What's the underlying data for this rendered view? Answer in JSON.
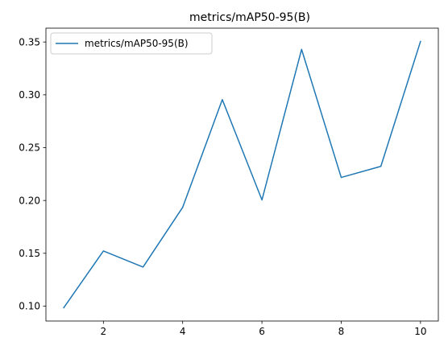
{
  "chart_data": {
    "type": "line",
    "title": "metrics/mAP50-95(B)",
    "xlabel": "",
    "ylabel": "",
    "x": [
      1,
      2,
      3,
      4,
      5,
      6,
      7,
      8,
      9,
      10
    ],
    "series": [
      {
        "name": "metrics/mAP50-95(B)",
        "values": [
          0.0985,
          0.1522,
          0.137,
          0.1935,
          0.2955,
          0.2005,
          0.343,
          0.2218,
          0.2323,
          0.3505
        ],
        "color": "#1f77b4"
      }
    ],
    "xlim": [
      0.55,
      10.45
    ],
    "ylim": [
      0.0859,
      0.3631
    ],
    "xticks": [
      2,
      4,
      6,
      8,
      10
    ],
    "xtick_labels": [
      "2",
      "4",
      "6",
      "8",
      "10"
    ],
    "yticks": [
      0.1,
      0.15,
      0.2,
      0.25,
      0.3,
      0.35
    ],
    "ytick_labels": [
      "0.10",
      "0.15",
      "0.20",
      "0.25",
      "0.30",
      "0.35"
    ],
    "grid": false,
    "legend_position": "top-left"
  }
}
